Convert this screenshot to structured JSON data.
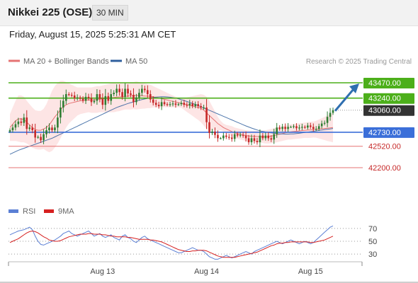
{
  "header": {
    "title": "Nikkei 225 (OSE)",
    "timeframe": "30 MIN"
  },
  "datetime": "Friday, August 15, 2025 5:25:31 AM CET",
  "colors": {
    "up": "#2e7d32",
    "down": "#c62828",
    "ma20": "#e57373",
    "band_fill": "#fde0e0",
    "ma50": "#2f5f9e",
    "resistance": "#4caf1a",
    "pivot": "#3b6fd9",
    "support": "#e57373",
    "rsi": "#5b7fd4",
    "rsi_ma": "#d62020",
    "arrow": "#2f6fb0"
  },
  "chart_data": [
    {
      "type": "candlestick",
      "legend": [
        {
          "label": "MA 20 + Bollinger Bands",
          "color": "#e57373"
        },
        {
          "label": "MA 50",
          "color": "#2f5f9e"
        }
      ],
      "credit": "Research © 2025 Trading Central",
      "ylim": [
        41850,
        43650
      ],
      "x_ticks": [
        {
          "label": "Aug 13",
          "index": 33
        },
        {
          "label": "Aug 14",
          "index": 70
        },
        {
          "label": "Aug 15",
          "index": 107
        }
      ],
      "levels": [
        {
          "label": "43470.00",
          "value": 43470,
          "kind": "resistance"
        },
        {
          "label": "43240.00",
          "value": 43240,
          "kind": "resistance"
        },
        {
          "label": "43060.00",
          "value": 43060,
          "kind": "last"
        },
        {
          "label": "42730.00",
          "value": 42730,
          "kind": "pivot"
        },
        {
          "label": "42520.00",
          "value": 42520,
          "kind": "support"
        },
        {
          "label": "42200.00",
          "value": 42200,
          "kind": "support"
        }
      ],
      "forecast": {
        "from_value": 43060,
        "to_value": 43470
      },
      "close": [
        42760,
        42800,
        42850,
        42890,
        42870,
        42950,
        42780,
        42800,
        42760,
        42650,
        42660,
        42610,
        42700,
        42760,
        42800,
        42760,
        42800,
        42950,
        43100,
        43200,
        43300,
        43290,
        43280,
        43240,
        43250,
        43230,
        43200,
        43260,
        43240,
        43180,
        43200,
        43300,
        43230,
        43140,
        43270,
        43200,
        43300,
        43320,
        43380,
        43330,
        43260,
        43380,
        43310,
        43290,
        43180,
        43250,
        43320,
        43380,
        43360,
        43300,
        43220,
        43170,
        43140,
        43120,
        43180,
        43150,
        43140,
        43150,
        43160,
        43140,
        43150,
        43170,
        43140,
        43130,
        43160,
        43120,
        43150,
        43120,
        43100,
        43100,
        42880,
        42720,
        42740,
        42690,
        42640,
        42640,
        42680,
        42660,
        42650,
        42630,
        42700,
        42680,
        42690,
        42680,
        42640,
        42580,
        42640,
        42600,
        42580,
        42680,
        42640,
        42680,
        42640,
        42620,
        42700,
        42800,
        42780,
        42810,
        42780,
        42810,
        42810,
        42820,
        42790,
        42800,
        42810,
        42800,
        42830,
        42810,
        42780,
        42780,
        42820,
        42860,
        42870,
        42960,
        43020,
        43060
      ],
      "ma20": [
        42800,
        42850,
        42900,
        42930,
        42930,
        42920,
        42880,
        42840,
        42800,
        42770,
        42760,
        42760,
        42780,
        42800,
        42840,
        42900,
        42960,
        43010,
        43070,
        43110,
        43140,
        43160,
        43170,
        43180,
        43190,
        43200,
        43205,
        43210,
        43215,
        43210,
        43215,
        43220,
        43225,
        43230,
        43235,
        43240,
        43245,
        43250,
        43255,
        43258,
        43260,
        43265,
        43270,
        43275,
        43278,
        43280,
        43278,
        43275,
        43272,
        43270,
        43266,
        43260,
        43252,
        43242,
        43232,
        43222,
        43212,
        43202,
        43192,
        43182,
        43172,
        43162,
        43152,
        43142,
        43132,
        43122,
        43112,
        43102,
        43090,
        43060,
        43020,
        42980,
        42940,
        42900,
        42860,
        42830,
        42800,
        42780,
        42760,
        42740,
        42720,
        42710,
        42700,
        42690,
        42680,
        42675,
        42670,
        42668,
        42666,
        42664,
        42662,
        42660,
        42665,
        42672,
        42680,
        42690,
        42700,
        42710,
        42720,
        42730,
        42735,
        42740,
        42745,
        42750,
        42755,
        42760,
        42762,
        42765,
        42770,
        42774,
        42778,
        42782,
        42786,
        42790,
        42795,
        42800
      ],
      "band_upper": [
        43000,
        43100,
        43200,
        43280,
        43280,
        43260,
        43200,
        43150,
        43100,
        43060,
        43050,
        43050,
        43080,
        43150,
        43250,
        43350,
        43420,
        43470,
        43500,
        43500,
        43480,
        43460,
        43440,
        43420,
        43400,
        43400,
        43400,
        43400,
        43400,
        43400,
        43410,
        43420,
        43420,
        43430,
        43440,
        43450,
        43460,
        43470,
        43470,
        43470,
        43460,
        43460,
        43470,
        43480,
        43480,
        43490,
        43480,
        43470,
        43460,
        43450,
        43440,
        43420,
        43400,
        43380,
        43360,
        43340,
        43320,
        43300,
        43280,
        43260,
        43240,
        43230,
        43240,
        43250,
        43260,
        43270,
        43280,
        43290,
        43300,
        43290,
        43260,
        43200,
        43120,
        43040,
        42960,
        42900,
        42860,
        42840,
        42830,
        42820,
        42800,
        42790,
        42780,
        42770,
        42760,
        42755,
        42750,
        42750,
        42750,
        42752,
        42755,
        42760,
        42770,
        42780,
        42790,
        42800,
        42810,
        42820,
        42830,
        42840,
        42850,
        42855,
        42860,
        42865,
        42870,
        42875,
        42880,
        42885,
        42890,
        42900,
        42920,
        42940,
        42960,
        42980,
        43000,
        43020
      ],
      "band_lower": [
        42600,
        42600,
        42600,
        42590,
        42580,
        42580,
        42560,
        42530,
        42500,
        42480,
        42470,
        42470,
        42480,
        42450,
        42430,
        42450,
        42500,
        42560,
        42640,
        42720,
        42800,
        42860,
        42900,
        42940,
        42980,
        43000,
        43010,
        43020,
        43030,
        43020,
        43020,
        43020,
        43030,
        43030,
        43030,
        43030,
        43030,
        43030,
        43040,
        43046,
        43060,
        43070,
        43070,
        43070,
        43076,
        43070,
        43076,
        43080,
        43084,
        43090,
        43092,
        43100,
        43104,
        43104,
        43104,
        43104,
        43104,
        43104,
        43104,
        43104,
        43104,
        43094,
        43064,
        43034,
        43004,
        42974,
        42944,
        42914,
        42880,
        42830,
        42780,
        42760,
        42760,
        42760,
        42760,
        42760,
        42740,
        42720,
        42690,
        42660,
        42640,
        42630,
        42620,
        42610,
        42600,
        42595,
        42590,
        42586,
        42582,
        42576,
        42569,
        42560,
        42560,
        42564,
        42570,
        42580,
        42590,
        42600,
        42610,
        42620,
        42620,
        42625,
        42630,
        42635,
        42640,
        42645,
        42644,
        42645,
        42650,
        42648,
        42636,
        42624,
        42612,
        42600,
        42590,
        42580
      ],
      "ma50": [
        42400,
        42420,
        42440,
        42460,
        42475,
        42490,
        42505,
        42520,
        42535,
        42550,
        42565,
        42580,
        42595,
        42610,
        42625,
        42640,
        42660,
        42680,
        42700,
        42720,
        42740,
        42760,
        42780,
        42800,
        42820,
        42840,
        42860,
        42880,
        42900,
        42920,
        42940,
        42960,
        42980,
        43000,
        43020,
        43040,
        43060,
        43080,
        43100,
        43115,
        43130,
        43145,
        43160,
        43172,
        43184,
        43196,
        43208,
        43218,
        43228,
        43236,
        43244,
        43250,
        43255,
        43258,
        43260,
        43260,
        43258,
        43254,
        43248,
        43240,
        43230,
        43218,
        43204,
        43190,
        43176,
        43162,
        43146,
        43130,
        43112,
        43094,
        43076,
        43058,
        43040,
        43022,
        43004,
        42986,
        42968,
        42950,
        42932,
        42914,
        42896,
        42878,
        42860,
        42842,
        42824,
        42808,
        42792,
        42778,
        42764,
        42752,
        42742,
        42734,
        42726,
        42720,
        42714,
        42710,
        42706,
        42704,
        42702,
        42702,
        42704,
        42706,
        42710,
        42714,
        42720,
        42726,
        42732,
        42738,
        42744,
        42750,
        42756,
        42762,
        42768,
        42774,
        42780,
        42786
      ]
    },
    {
      "type": "line",
      "legend": [
        {
          "label": "RSI",
          "color": "#5b7fd4"
        },
        {
          "label": "9MA",
          "color": "#d62020"
        }
      ],
      "ylim": [
        18,
        82
      ],
      "y_ticks": [
        {
          "label": "70",
          "value": 70
        },
        {
          "label": "50",
          "value": 50
        },
        {
          "label": "30",
          "value": 30
        }
      ],
      "rsi": [
        60,
        62,
        64,
        66,
        67,
        68,
        70,
        72,
        68,
        58,
        50,
        45,
        44,
        46,
        48,
        50,
        52,
        55,
        58,
        62,
        64,
        66,
        62,
        60,
        58,
        60,
        62,
        64,
        66,
        62,
        58,
        60,
        62,
        58,
        56,
        58,
        60,
        56,
        54,
        52,
        58,
        60,
        56,
        54,
        50,
        48,
        52,
        56,
        58,
        54,
        52,
        50,
        48,
        46,
        44,
        42,
        40,
        38,
        36,
        34,
        32,
        32,
        34,
        36,
        38,
        40,
        38,
        36,
        36,
        34,
        30,
        26,
        24,
        22,
        22,
        24,
        26,
        28,
        26,
        24,
        26,
        28,
        30,
        32,
        34,
        32,
        30,
        34,
        36,
        38,
        40,
        42,
        44,
        46,
        48,
        50,
        48,
        46,
        48,
        50,
        52,
        50,
        48,
        46,
        48,
        50,
        48,
        46,
        48,
        52,
        56,
        60,
        64,
        68,
        72,
        74
      ],
      "ma9": [
        48,
        50,
        52,
        54,
        57,
        60,
        63,
        65,
        66,
        65,
        63,
        60,
        57,
        55,
        52,
        51,
        50,
        50,
        51,
        53,
        55,
        57,
        58,
        59,
        60,
        61,
        61,
        61,
        62,
        62,
        61,
        61,
        61,
        60,
        60,
        59,
        58,
        58,
        57,
        57,
        57,
        57,
        56,
        56,
        55,
        54,
        53,
        53,
        53,
        53,
        52,
        52,
        51,
        50,
        49,
        47,
        45,
        43,
        41,
        39,
        37,
        36,
        35,
        34,
        34,
        35,
        35,
        36,
        36,
        36,
        35,
        33,
        31,
        29,
        27,
        26,
        25,
        25,
        25,
        25,
        25,
        26,
        27,
        28,
        29,
        30,
        31,
        32,
        33,
        35,
        37,
        39,
        41,
        43,
        44,
        46,
        47,
        47,
        48,
        48,
        49,
        49,
        49,
        49,
        49,
        49,
        49,
        48,
        48,
        49,
        50,
        51,
        52,
        54,
        56,
        58
      ]
    }
  ]
}
